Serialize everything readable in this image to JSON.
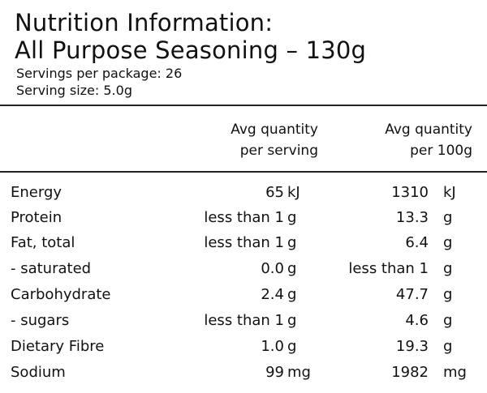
{
  "panel": {
    "title_line1": "Nutrition Information:",
    "title_line2": "All Purpose Seasoning – 130g",
    "servings": "Servings per package: 26",
    "serving_size": "Serving size: 5.0g"
  },
  "headers": {
    "per_serving_line1": "Avg quantity",
    "per_serving_line2": "per serving",
    "per_100g_line1": "Avg quantity",
    "per_100g_line2": "per 100g"
  },
  "rows": [
    {
      "name": "Energy",
      "serv_val": "65",
      "serv_unit": "kJ",
      "g100_val": "1310",
      "g100_unit": "kJ"
    },
    {
      "name": "Protein",
      "serv_val": "less than 1",
      "serv_unit": "g",
      "g100_val": "13.3",
      "g100_unit": "g"
    },
    {
      "name": "Fat, total",
      "serv_val": "less than 1",
      "serv_unit": "g",
      "g100_val": "6.4",
      "g100_unit": "g"
    },
    {
      "name": "- saturated",
      "serv_val": "0.0",
      "serv_unit": "g",
      "g100_val": "less than 1",
      "g100_unit": "g"
    },
    {
      "name": "Carbohydrate",
      "serv_val": "2.4",
      "serv_unit": "g",
      "g100_val": "47.7",
      "g100_unit": "g"
    },
    {
      "name": "- sugars",
      "serv_val": "less than 1",
      "serv_unit": "g",
      "g100_val": "4.6",
      "g100_unit": "g"
    },
    {
      "name": "Dietary Fibre",
      "serv_val": "1.0",
      "serv_unit": "g",
      "g100_val": "19.3",
      "g100_unit": "g"
    },
    {
      "name": "Sodium",
      "serv_val": "99",
      "serv_unit": "mg",
      "g100_val": "1982",
      "g100_unit": "mg"
    }
  ]
}
